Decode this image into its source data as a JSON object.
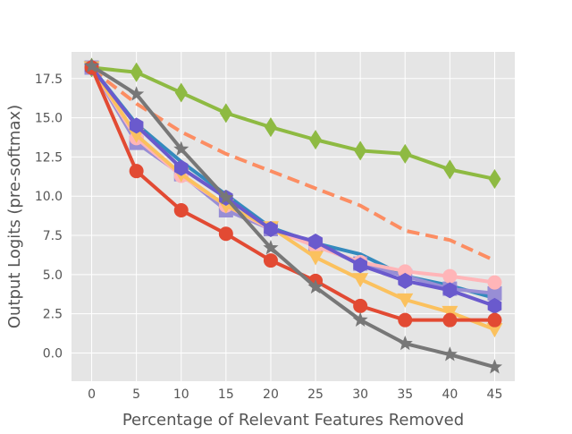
{
  "chart_data": {
    "type": "line",
    "title": "",
    "xlabel": "Percentage of Relevant Features Removed",
    "ylabel": "Output Logits (pre-softmax)",
    "x": [
      0,
      5,
      10,
      15,
      20,
      25,
      30,
      35,
      40,
      45
    ],
    "xticks": [
      "0",
      "5",
      "10",
      "15",
      "20",
      "25",
      "30",
      "35",
      "40",
      "45"
    ],
    "yticks": [
      "0.0",
      "2.5",
      "5.0",
      "7.5",
      "10.0",
      "12.5",
      "15.0",
      "17.5"
    ],
    "ytick_values": [
      0,
      2.5,
      5,
      7.5,
      10,
      12.5,
      15,
      17.5
    ],
    "xlim": [
      -2.25,
      47.25
    ],
    "ylim": [
      -1.8,
      19.2
    ],
    "grid": true,
    "legend": "none",
    "series": [
      {
        "color": "#8eba42",
        "marker": "diamond",
        "line": "solid",
        "values": [
          18.2,
          17.9,
          16.6,
          15.3,
          14.4,
          13.6,
          12.9,
          12.7,
          11.7,
          11.1
        ]
      },
      {
        "color": "#fc8d62",
        "marker": "none",
        "line": "dashed",
        "values": [
          18.1,
          15.9,
          14.1,
          12.7,
          11.6,
          10.5,
          9.4,
          7.8,
          7.2,
          5.9
        ]
      },
      {
        "color": "#348abd",
        "marker": "none",
        "line": "solid",
        "values": [
          18.2,
          14.6,
          12.2,
          10.1,
          8.0,
          7.0,
          6.3,
          4.9,
          4.3,
          3.5
        ]
      },
      {
        "color": "#988ed5",
        "marker": "square",
        "line": "solid",
        "values": [
          18.2,
          13.4,
          11.4,
          9.1,
          7.9,
          6.9,
          5.7,
          4.9,
          4.1,
          3.8
        ]
      },
      {
        "color": "#ffb5b8",
        "marker": "circle",
        "line": "solid",
        "values": [
          18.2,
          13.7,
          11.3,
          9.4,
          7.9,
          6.8,
          5.8,
          5.2,
          4.9,
          4.5
        ]
      },
      {
        "color": "#fbc15e",
        "marker": "triangle-down",
        "line": "solid",
        "values": [
          18.2,
          13.9,
          11.4,
          9.4,
          8.0,
          6.1,
          4.7,
          3.4,
          2.6,
          1.5
        ]
      },
      {
        "color": "#6a5acd",
        "marker": "hexagon",
        "line": "solid",
        "values": [
          18.2,
          14.5,
          11.8,
          9.9,
          7.9,
          7.1,
          5.6,
          4.6,
          4.0,
          3.0
        ]
      },
      {
        "color": "#e24a33",
        "marker": "circle",
        "line": "solid",
        "values": [
          18.2,
          11.6,
          9.1,
          7.6,
          5.9,
          4.6,
          3.0,
          2.1,
          2.1,
          2.1
        ]
      },
      {
        "color": "#777777",
        "marker": "star",
        "line": "solid",
        "values": [
          18.3,
          16.5,
          13.0,
          9.9,
          6.7,
          4.2,
          2.1,
          0.6,
          -0.1,
          -0.9
        ]
      }
    ]
  }
}
